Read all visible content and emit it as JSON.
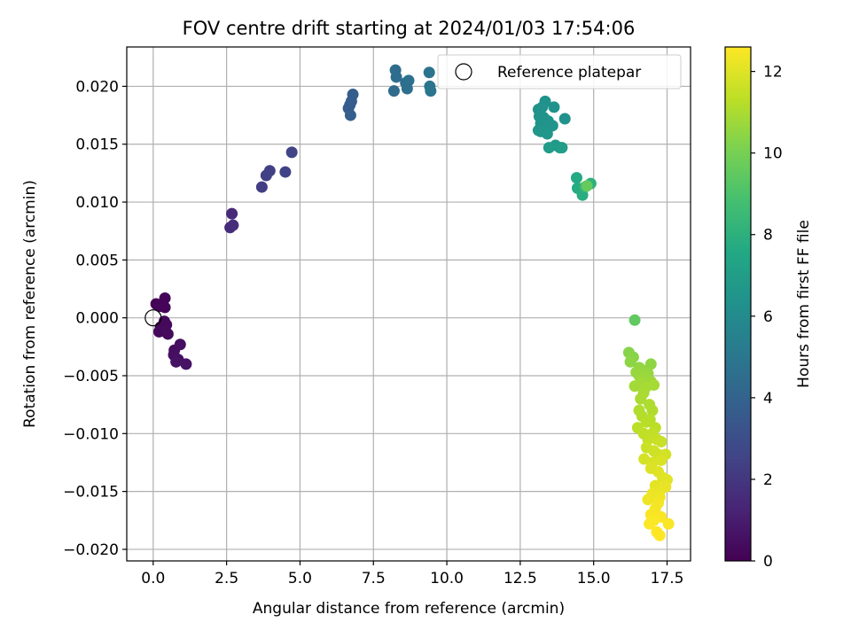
{
  "chart_data": {
    "type": "scatter",
    "title": "FOV centre drift starting at 2024/01/03 17:54:06",
    "xlabel": "Angular distance from reference (arcmin)",
    "ylabel": "Rotation from reference (arcmin)",
    "xlim": [
      -0.9,
      18.3
    ],
    "ylim": [
      -0.021,
      0.0234
    ],
    "xticks": [
      "0.0",
      "2.5",
      "5.0",
      "7.5",
      "10.0",
      "12.5",
      "15.0",
      "17.5"
    ],
    "xtick_values": [
      0,
      2.5,
      5,
      7.5,
      10,
      12.5,
      15,
      17.5
    ],
    "yticks": [
      "0.020",
      "0.015",
      "0.010",
      "0.005",
      "0.000",
      "−0.005",
      "−0.010",
      "−0.015",
      "−0.020"
    ],
    "ytick_values": [
      0.02,
      0.015,
      0.01,
      0.005,
      0,
      -0.005,
      -0.01,
      -0.015,
      -0.02
    ],
    "grid": true,
    "colormap": "viridis",
    "colorbar": {
      "label": "Hours from first FF file",
      "range": [
        0,
        12.6
      ],
      "ticks": [
        "0",
        "2",
        "4",
        "6",
        "8",
        "10",
        "12"
      ],
      "tick_values": [
        0,
        2,
        4,
        6,
        8,
        10,
        12
      ]
    },
    "legend": {
      "placement": "top-right",
      "entries": [
        "Reference platepar"
      ]
    },
    "reference_point": {
      "x": 0,
      "y": 0
    },
    "points": [
      [
        0.1,
        0.0012,
        0.05
      ],
      [
        0.22,
        0.001,
        0.1
      ],
      [
        0.4,
        0.0017,
        0.12
      ],
      [
        0.4,
        0.0009,
        0.15
      ],
      [
        0.25,
        -0.0008,
        0.2
      ],
      [
        0.38,
        -0.0003,
        0.25
      ],
      [
        0.2,
        -0.0012,
        0.3
      ],
      [
        0.45,
        -0.0006,
        0.3
      ],
      [
        0.43,
        -0.0012,
        0.35
      ],
      [
        0.5,
        -0.0014,
        0.35
      ],
      [
        0.72,
        -0.0028,
        0.4
      ],
      [
        0.92,
        -0.0023,
        0.45
      ],
      [
        0.7,
        -0.0032,
        0.5
      ],
      [
        0.85,
        -0.0036,
        0.55
      ],
      [
        0.78,
        -0.0038,
        0.6
      ],
      [
        1.12,
        -0.004,
        0.65
      ],
      [
        2.68,
        0.009,
        1.5
      ],
      [
        2.62,
        0.0078,
        1.55
      ],
      [
        2.72,
        0.008,
        1.6
      ],
      [
        3.7,
        0.0113,
        2.3
      ],
      [
        3.85,
        0.0123,
        2.35
      ],
      [
        3.97,
        0.0127,
        2.4
      ],
      [
        4.5,
        0.0126,
        2.5
      ],
      [
        4.72,
        0.0143,
        2.55
      ],
      [
        6.65,
        0.0181,
        3.6
      ],
      [
        6.7,
        0.0184,
        3.65
      ],
      [
        6.75,
        0.0187,
        3.7
      ],
      [
        6.8,
        0.0193,
        3.75
      ],
      [
        6.72,
        0.0175,
        3.8
      ],
      [
        8.2,
        0.0196,
        4.4
      ],
      [
        8.25,
        0.0214,
        4.45
      ],
      [
        8.28,
        0.0208,
        4.5
      ],
      [
        8.6,
        0.0203,
        4.55
      ],
      [
        8.65,
        0.0198,
        4.6
      ],
      [
        8.7,
        0.0205,
        4.65
      ],
      [
        9.4,
        0.0212,
        4.8
      ],
      [
        9.42,
        0.02,
        4.85
      ],
      [
        9.45,
        0.0196,
        4.9
      ],
      [
        13.12,
        0.018,
        6.3
      ],
      [
        13.35,
        0.0187,
        6.32
      ],
      [
        13.25,
        0.0182,
        6.34
      ],
      [
        13.65,
        0.0182,
        6.36
      ],
      [
        14.02,
        0.0172,
        6.38
      ],
      [
        13.15,
        0.0174,
        6.4
      ],
      [
        13.3,
        0.0173,
        6.42
      ],
      [
        13.45,
        0.017,
        6.44
      ],
      [
        13.2,
        0.0168,
        6.46
      ],
      [
        13.5,
        0.0165,
        6.48
      ],
      [
        13.6,
        0.0166,
        6.5
      ],
      [
        13.12,
        0.0162,
        6.52
      ],
      [
        13.3,
        0.0163,
        6.54
      ],
      [
        13.2,
        0.0161,
        6.56
      ],
      [
        13.42,
        0.0159,
        6.58
      ],
      [
        13.7,
        0.0149,
        6.8
      ],
      [
        13.85,
        0.0147,
        6.85
      ],
      [
        13.48,
        0.0147,
        6.9
      ],
      [
        13.92,
        0.0147,
        6.95
      ],
      [
        14.42,
        0.0121,
        7.6
      ],
      [
        14.45,
        0.0112,
        7.7
      ],
      [
        14.58,
        0.011,
        7.75
      ],
      [
        14.62,
        0.0106,
        7.8
      ],
      [
        14.9,
        0.0116,
        8.0
      ],
      [
        14.7,
        0.0113,
        8.2
      ],
      [
        14.77,
        0.0114,
        9.6
      ],
      [
        16.4,
        -0.0002,
        9.5
      ],
      [
        16.2,
        -0.003,
        10.3
      ],
      [
        16.35,
        -0.0034,
        10.35
      ],
      [
        16.25,
        -0.0038,
        10.4
      ],
      [
        16.95,
        -0.004,
        10.45
      ],
      [
        16.55,
        -0.0043,
        10.5
      ],
      [
        16.65,
        -0.0045,
        10.55
      ],
      [
        16.45,
        -0.0047,
        10.6
      ],
      [
        16.85,
        -0.0048,
        10.6
      ],
      [
        16.55,
        -0.005,
        10.65
      ],
      [
        16.72,
        -0.0052,
        10.7
      ],
      [
        16.95,
        -0.0055,
        10.75
      ],
      [
        16.6,
        -0.0056,
        10.8
      ],
      [
        16.4,
        -0.0059,
        10.85
      ],
      [
        16.78,
        -0.006,
        10.9
      ],
      [
        17.05,
        -0.0058,
        10.9
      ],
      [
        16.7,
        -0.0065,
        10.95
      ],
      [
        16.6,
        -0.007,
        11.0
      ],
      [
        16.9,
        -0.0075,
        11.05
      ],
      [
        16.55,
        -0.008,
        11.1
      ],
      [
        17.0,
        -0.008,
        11.1
      ],
      [
        16.65,
        -0.0085,
        11.15
      ],
      [
        16.92,
        -0.0088,
        11.2
      ],
      [
        16.8,
        -0.009,
        11.25
      ],
      [
        16.5,
        -0.0095,
        11.3
      ],
      [
        17.1,
        -0.0095,
        11.3
      ],
      [
        16.7,
        -0.01,
        11.35
      ],
      [
        17.0,
        -0.01,
        11.4
      ],
      [
        16.85,
        -0.0105,
        11.45
      ],
      [
        17.15,
        -0.0105,
        11.5
      ],
      [
        17.3,
        -0.0107,
        11.55
      ],
      [
        16.8,
        -0.0112,
        11.6
      ],
      [
        17.05,
        -0.0115,
        11.65
      ],
      [
        17.2,
        -0.0118,
        11.7
      ],
      [
        17.45,
        -0.0118,
        11.75
      ],
      [
        16.72,
        -0.0122,
        11.8
      ],
      [
        17.0,
        -0.0125,
        11.85
      ],
      [
        17.3,
        -0.0123,
        11.9
      ],
      [
        16.95,
        -0.013,
        11.95
      ],
      [
        17.2,
        -0.0133,
        12.0
      ],
      [
        17.35,
        -0.0138,
        12.0
      ],
      [
        17.5,
        -0.014,
        12.05
      ],
      [
        17.1,
        -0.0145,
        12.1
      ],
      [
        17.3,
        -0.0148,
        12.15
      ],
      [
        17.45,
        -0.0146,
        12.2
      ],
      [
        17.0,
        -0.0152,
        12.25
      ],
      [
        17.25,
        -0.0155,
        12.3
      ],
      [
        16.85,
        -0.0157,
        12.35
      ],
      [
        17.2,
        -0.016,
        12.4
      ],
      [
        17.1,
        -0.0165,
        12.45
      ],
      [
        16.95,
        -0.017,
        12.5
      ],
      [
        17.3,
        -0.0172,
        12.5
      ],
      [
        17.05,
        -0.0175,
        12.55
      ],
      [
        16.9,
        -0.0178,
        12.55
      ],
      [
        17.55,
        -0.0178,
        12.5
      ],
      [
        17.15,
        -0.0185,
        12.6
      ],
      [
        17.25,
        -0.0188,
        12.6
      ]
    ]
  }
}
